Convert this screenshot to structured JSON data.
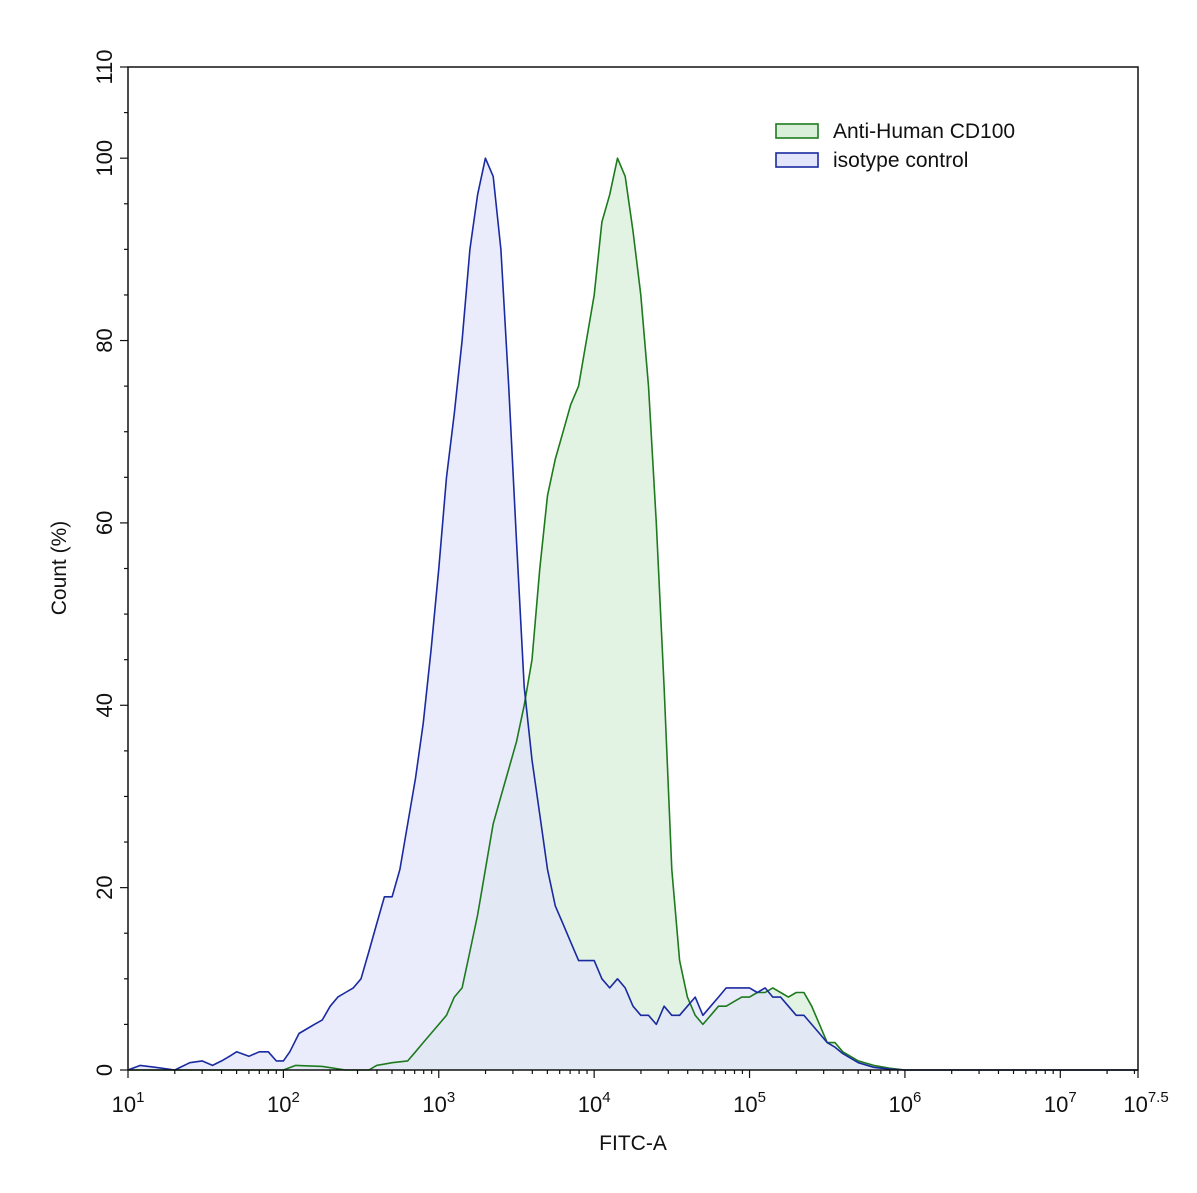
{
  "chart_data": {
    "type": "area",
    "title": "",
    "xlabel": "FITC-A",
    "ylabel": "Count  (%)",
    "x_scale": "log10",
    "xlim": [
      10,
      31622777
    ],
    "ylim": [
      0,
      110
    ],
    "x_ticks": [
      {
        "value": 10,
        "base": "10",
        "exp": "1"
      },
      {
        "value": 100,
        "base": "10",
        "exp": "2"
      },
      {
        "value": 1000,
        "base": "10",
        "exp": "3"
      },
      {
        "value": 10000,
        "base": "10",
        "exp": "4"
      },
      {
        "value": 100000,
        "base": "10",
        "exp": "5"
      },
      {
        "value": 1000000,
        "base": "10",
        "exp": "6"
      },
      {
        "value": 10000000,
        "base": "10",
        "exp": "7"
      },
      {
        "value": 31622777,
        "base": "10",
        "exp": "7.5"
      }
    ],
    "y_ticks": [
      "0",
      "20",
      "40",
      "60",
      "80",
      "100",
      "110"
    ],
    "grid": false,
    "legend_position": "top-right",
    "series": [
      {
        "name": "Anti-Human CD100",
        "line_color": "#1e7a1e",
        "fill_color": "#d9efd9",
        "points": [
          [
            10,
            0
          ],
          [
            31.6,
            0
          ],
          [
            100,
            0
          ],
          [
            120,
            0.5
          ],
          [
            178,
            0.4
          ],
          [
            251,
            0
          ],
          [
            355,
            0
          ],
          [
            398,
            0.5
          ],
          [
            501,
            0.8
          ],
          [
            631,
            1
          ],
          [
            708,
            2
          ],
          [
            794,
            3
          ],
          [
            891,
            4
          ],
          [
            1000,
            5
          ],
          [
            1122,
            6
          ],
          [
            1259,
            8
          ],
          [
            1413,
            9
          ],
          [
            1585,
            13
          ],
          [
            1778,
            17
          ],
          [
            1995,
            22
          ],
          [
            2239,
            27
          ],
          [
            2512,
            30
          ],
          [
            2818,
            33
          ],
          [
            3162,
            36
          ],
          [
            3548,
            40
          ],
          [
            3981,
            45
          ],
          [
            4467,
            55
          ],
          [
            5012,
            63
          ],
          [
            5623,
            67
          ],
          [
            6310,
            70
          ],
          [
            7079,
            73
          ],
          [
            7943,
            75
          ],
          [
            8913,
            80
          ],
          [
            10000,
            85
          ],
          [
            11220,
            93
          ],
          [
            12589,
            96
          ],
          [
            14125,
            100
          ],
          [
            15849,
            98
          ],
          [
            17783,
            92
          ],
          [
            19953,
            85
          ],
          [
            22387,
            75
          ],
          [
            25119,
            60
          ],
          [
            28184,
            42
          ],
          [
            31623,
            22
          ],
          [
            35481,
            12
          ],
          [
            39811,
            8
          ],
          [
            44668,
            6
          ],
          [
            50119,
            5
          ],
          [
            56234,
            6
          ],
          [
            63096,
            7
          ],
          [
            70795,
            7
          ],
          [
            79433,
            7.5
          ],
          [
            89125,
            8
          ],
          [
            100000,
            8
          ],
          [
            112202,
            8.5
          ],
          [
            125893,
            8.5
          ],
          [
            141254,
            9
          ],
          [
            158489,
            8.5
          ],
          [
            177828,
            8
          ],
          [
            199526,
            8.5
          ],
          [
            223872,
            8.5
          ],
          [
            251189,
            7
          ],
          [
            281838,
            5
          ],
          [
            316228,
            3
          ],
          [
            354813,
            3
          ],
          [
            398107,
            2
          ],
          [
            501187,
            1
          ],
          [
            630957,
            0.5
          ],
          [
            794328,
            0.2
          ],
          [
            1000000,
            0
          ],
          [
            31622777,
            0
          ]
        ]
      },
      {
        "name": "isotype control",
        "line_color": "#1a2aa0",
        "fill_color": "#e3e6fa",
        "points": [
          [
            10,
            0
          ],
          [
            12,
            0.5
          ],
          [
            15,
            0.3
          ],
          [
            20,
            0
          ],
          [
            25,
            0.8
          ],
          [
            30,
            1
          ],
          [
            35,
            0.5
          ],
          [
            40,
            1
          ],
          [
            45,
            1.5
          ],
          [
            50,
            2
          ],
          [
            60,
            1.5
          ],
          [
            70,
            2
          ],
          [
            80,
            2
          ],
          [
            90,
            1
          ],
          [
            100,
            1
          ],
          [
            110,
            2
          ],
          [
            126,
            4
          ],
          [
            141,
            4.5
          ],
          [
            158,
            5
          ],
          [
            178,
            5.5
          ],
          [
            200,
            7
          ],
          [
            224,
            8
          ],
          [
            251,
            8.5
          ],
          [
            282,
            9
          ],
          [
            316,
            10
          ],
          [
            355,
            13
          ],
          [
            398,
            16
          ],
          [
            447,
            19
          ],
          [
            501,
            19
          ],
          [
            562,
            22
          ],
          [
            631,
            27
          ],
          [
            708,
            32
          ],
          [
            794,
            38
          ],
          [
            891,
            46
          ],
          [
            1000,
            55
          ],
          [
            1122,
            65
          ],
          [
            1259,
            72
          ],
          [
            1413,
            80
          ],
          [
            1585,
            90
          ],
          [
            1778,
            96
          ],
          [
            1995,
            100
          ],
          [
            2239,
            98
          ],
          [
            2512,
            90
          ],
          [
            2818,
            75
          ],
          [
            3162,
            58
          ],
          [
            3548,
            42
          ],
          [
            3981,
            34
          ],
          [
            4467,
            28
          ],
          [
            5012,
            22
          ],
          [
            5623,
            18
          ],
          [
            6310,
            16
          ],
          [
            7079,
            14
          ],
          [
            7943,
            12
          ],
          [
            8913,
            12
          ],
          [
            10000,
            12
          ],
          [
            11220,
            10
          ],
          [
            12589,
            9
          ],
          [
            14125,
            10
          ],
          [
            15849,
            9
          ],
          [
            17783,
            7
          ],
          [
            19953,
            6
          ],
          [
            22387,
            6
          ],
          [
            25119,
            5
          ],
          [
            28184,
            7
          ],
          [
            31623,
            6
          ],
          [
            35481,
            6
          ],
          [
            39811,
            7
          ],
          [
            44668,
            8
          ],
          [
            50119,
            6
          ],
          [
            56234,
            7
          ],
          [
            63096,
            8
          ],
          [
            70795,
            9
          ],
          [
            79433,
            9
          ],
          [
            89125,
            9
          ],
          [
            100000,
            9
          ],
          [
            112202,
            8.5
          ],
          [
            125893,
            9
          ],
          [
            141254,
            8
          ],
          [
            158489,
            8
          ],
          [
            177828,
            7
          ],
          [
            199526,
            6
          ],
          [
            223872,
            6
          ],
          [
            251189,
            5
          ],
          [
            281838,
            4
          ],
          [
            316228,
            3
          ],
          [
            354813,
            2.5
          ],
          [
            398107,
            1.8
          ],
          [
            501187,
            0.8
          ],
          [
            630957,
            0.3
          ],
          [
            794328,
            0.1
          ],
          [
            1000000,
            0
          ],
          [
            31622777,
            0
          ]
        ]
      }
    ]
  }
}
